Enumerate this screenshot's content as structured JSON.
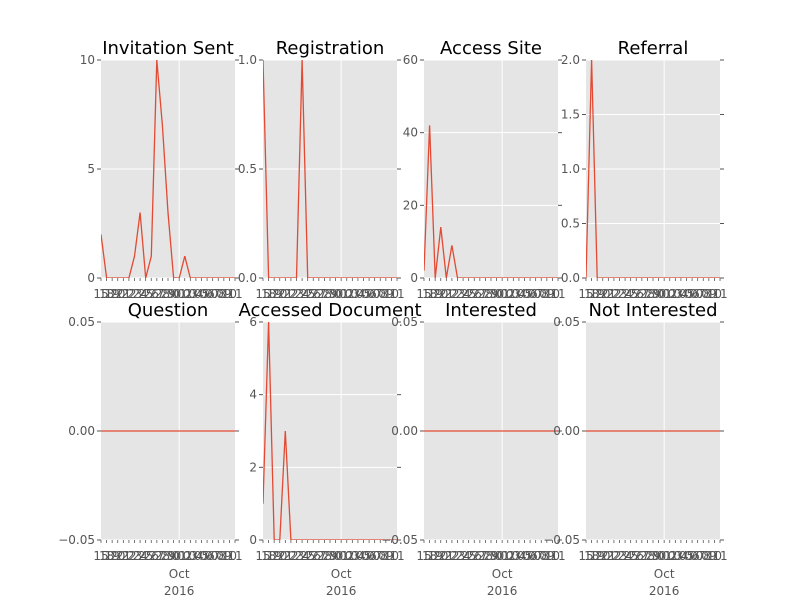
{
  "chart_data": [
    {
      "type": "line",
      "title": "Invitation Sent",
      "ylim": [
        0,
        10
      ],
      "yticks": [
        {
          "v": 0,
          "label": "0"
        },
        {
          "v": 5,
          "label": "5"
        },
        {
          "v": 10,
          "label": "10"
        }
      ],
      "xticks": [
        "15",
        "18",
        "19",
        "20",
        "21",
        "22",
        "23",
        "24",
        "25",
        "26",
        "27",
        "28",
        "29",
        "30",
        "01",
        "02",
        "03",
        "04",
        "05",
        "06",
        "07",
        "08",
        "09",
        "10",
        "11"
      ],
      "xmajor": "Oct",
      "xyear": "2016",
      "values": [
        2,
        0,
        0,
        0,
        0,
        0,
        1,
        3,
        0,
        1,
        10,
        7,
        3,
        0,
        0,
        1,
        0,
        0,
        0,
        0,
        0,
        0,
        0,
        0,
        0
      ],
      "grid": true
    },
    {
      "type": "line",
      "title": "Registration",
      "ylim": [
        0,
        1.0
      ],
      "yticks": [
        {
          "v": 0,
          "label": "0.0"
        },
        {
          "v": 0.5,
          "label": "0.5"
        },
        {
          "v": 1.0,
          "label": "1.0"
        }
      ],
      "xticks": [
        "15",
        "18",
        "19",
        "20",
        "21",
        "22",
        "23",
        "24",
        "25",
        "26",
        "27",
        "28",
        "29",
        "30",
        "01",
        "02",
        "03",
        "04",
        "05",
        "06",
        "07",
        "08",
        "09",
        "10",
        "11"
      ],
      "xmajor": "Oct",
      "xyear": "2016",
      "values": [
        1,
        0,
        0,
        0,
        0,
        0,
        0,
        1,
        0,
        0,
        0,
        0,
        0,
        0,
        0,
        0,
        0,
        0,
        0,
        0,
        0,
        0,
        0,
        0,
        0
      ],
      "grid": true
    },
    {
      "type": "line",
      "title": "Access Site",
      "ylim": [
        0,
        60
      ],
      "yticks": [
        {
          "v": 0,
          "label": "0"
        },
        {
          "v": 20,
          "label": "20"
        },
        {
          "v": 40,
          "label": "40"
        },
        {
          "v": 60,
          "label": "60"
        }
      ],
      "xticks": [
        "15",
        "18",
        "19",
        "20",
        "21",
        "22",
        "23",
        "24",
        "25",
        "26",
        "27",
        "28",
        "29",
        "30",
        "01",
        "02",
        "03",
        "04",
        "05",
        "06",
        "07",
        "08",
        "09",
        "10",
        "11"
      ],
      "xmajor": "Oct",
      "xyear": "2016",
      "values": [
        2,
        42,
        0,
        14,
        0,
        9,
        0,
        0,
        0,
        0,
        0,
        0,
        0,
        0,
        0,
        0,
        0,
        0,
        0,
        0,
        0,
        0,
        0,
        0,
        0
      ],
      "grid": true
    },
    {
      "type": "line",
      "title": "Referral",
      "ylim": [
        0,
        2.0
      ],
      "yticks": [
        {
          "v": 0,
          "label": "0.0"
        },
        {
          "v": 0.5,
          "label": "0.5"
        },
        {
          "v": 1.0,
          "label": "1.0"
        },
        {
          "v": 1.5,
          "label": "1.5"
        },
        {
          "v": 2.0,
          "label": "2.0"
        }
      ],
      "xticks": [
        "15",
        "18",
        "19",
        "20",
        "21",
        "22",
        "23",
        "24",
        "25",
        "26",
        "27",
        "28",
        "29",
        "30",
        "01",
        "02",
        "03",
        "04",
        "05",
        "06",
        "07",
        "08",
        "09",
        "10",
        "11"
      ],
      "xmajor": "Oct",
      "xyear": "2016",
      "values": [
        0,
        2,
        0,
        0,
        0,
        0,
        0,
        0,
        0,
        0,
        0,
        0,
        0,
        0,
        0,
        0,
        0,
        0,
        0,
        0,
        0,
        0,
        0,
        0,
        0
      ],
      "grid": true
    },
    {
      "type": "line",
      "title": "Question",
      "ylim": [
        -0.05,
        0.05
      ],
      "yticks": [
        {
          "v": -0.05,
          "label": "−0.05"
        },
        {
          "v": 0,
          "label": "0.00"
        },
        {
          "v": 0.05,
          "label": "0.05"
        }
      ],
      "xticks": [
        "15",
        "18",
        "19",
        "20",
        "21",
        "22",
        "23",
        "24",
        "25",
        "26",
        "27",
        "28",
        "29",
        "30",
        "01",
        "02",
        "03",
        "04",
        "05",
        "06",
        "07",
        "08",
        "09",
        "10",
        "11"
      ],
      "xmajor": "Oct",
      "xyear": "2016",
      "values": [
        0,
        0,
        0,
        0,
        0,
        0,
        0,
        0,
        0,
        0,
        0,
        0,
        0,
        0,
        0,
        0,
        0,
        0,
        0,
        0,
        0,
        0,
        0,
        0,
        0
      ],
      "grid": true
    },
    {
      "type": "line",
      "title": "Accessed Document",
      "ylim": [
        0,
        6
      ],
      "yticks": [
        {
          "v": 0,
          "label": "0"
        },
        {
          "v": 2,
          "label": "2"
        },
        {
          "v": 4,
          "label": "4"
        },
        {
          "v": 6,
          "label": "6"
        }
      ],
      "xticks": [
        "15",
        "18",
        "19",
        "20",
        "21",
        "22",
        "23",
        "24",
        "25",
        "26",
        "27",
        "28",
        "29",
        "30",
        "01",
        "02",
        "03",
        "04",
        "05",
        "06",
        "07",
        "08",
        "09",
        "10",
        "11"
      ],
      "xmajor": "Oct",
      "xyear": "2016",
      "values": [
        1,
        6,
        0,
        0,
        3,
        0,
        0,
        0,
        0,
        0,
        0,
        0,
        0,
        0,
        0,
        0,
        0,
        0,
        0,
        0,
        0,
        0,
        0,
        0,
        0
      ],
      "grid": true
    },
    {
      "type": "line",
      "title": "Interested",
      "ylim": [
        -0.05,
        0.05
      ],
      "yticks": [
        {
          "v": -0.05,
          "label": "−0.05"
        },
        {
          "v": 0,
          "label": "0.00"
        },
        {
          "v": 0.05,
          "label": "0.05"
        }
      ],
      "xticks": [
        "15",
        "18",
        "19",
        "20",
        "21",
        "22",
        "23",
        "24",
        "25",
        "26",
        "27",
        "28",
        "29",
        "30",
        "01",
        "02",
        "03",
        "04",
        "05",
        "06",
        "07",
        "08",
        "09",
        "10",
        "11"
      ],
      "xmajor": "Oct",
      "xyear": "2016",
      "values": [
        0,
        0,
        0,
        0,
        0,
        0,
        0,
        0,
        0,
        0,
        0,
        0,
        0,
        0,
        0,
        0,
        0,
        0,
        0,
        0,
        0,
        0,
        0,
        0,
        0
      ],
      "grid": true
    },
    {
      "type": "line",
      "title": "Not Interested",
      "ylim": [
        -0.05,
        0.05
      ],
      "yticks": [
        {
          "v": -0.05,
          "label": "−0.05"
        },
        {
          "v": 0,
          "label": "0.00"
        },
        {
          "v": 0.05,
          "label": "0.05"
        }
      ],
      "xticks": [
        "15",
        "18",
        "19",
        "20",
        "21",
        "22",
        "23",
        "24",
        "25",
        "26",
        "27",
        "28",
        "29",
        "30",
        "01",
        "02",
        "03",
        "04",
        "05",
        "06",
        "07",
        "08",
        "09",
        "10",
        "11"
      ],
      "xmajor": "Oct",
      "xyear": "2016",
      "values": [
        0,
        0,
        0,
        0,
        0,
        0,
        0,
        0,
        0,
        0,
        0,
        0,
        0,
        0,
        0,
        0,
        0,
        0,
        0,
        0,
        0,
        0,
        0,
        0,
        0
      ],
      "grid": true
    }
  ],
  "colors": {
    "line": "#e24a33",
    "plot_bg": "#e5e5e5",
    "grid": "#ffffff",
    "tick_text": "#555555",
    "title_text": "#000000"
  }
}
